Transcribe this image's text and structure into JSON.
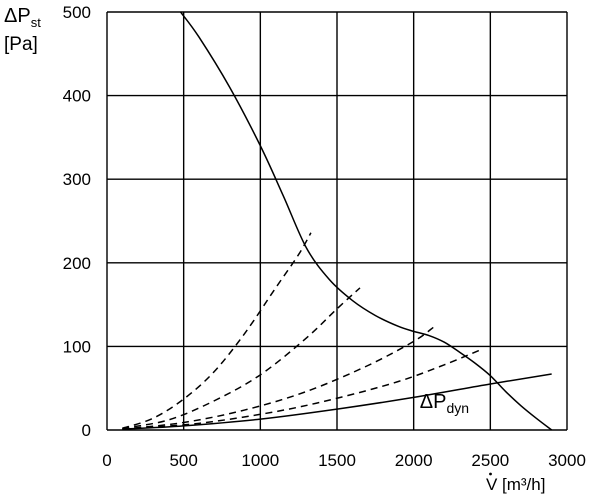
{
  "chart_data": {
    "type": "line",
    "title": "",
    "ylabel": {
      "main": "ΔP",
      "sub": "st",
      "unit": "[Pa]"
    },
    "xlabel": {
      "main": "V",
      "unit": "[m³/h]"
    },
    "xlim": [
      0,
      3000
    ],
    "ylim": [
      0,
      500
    ],
    "x_ticks": [
      0,
      500,
      1000,
      1500,
      2000,
      2500,
      3000
    ],
    "y_ticks": [
      0,
      100,
      200,
      300,
      400,
      500
    ],
    "grid": true,
    "series": [
      {
        "style": "solid",
        "x": [
          480,
          600,
          800,
          1000,
          1150,
          1300,
          1450,
          1600,
          1750,
          1900,
          2000,
          2100,
          2200,
          2300,
          2400,
          2500,
          2600,
          2700,
          2800,
          2900
        ],
        "y": [
          500,
          470,
          410,
          340,
          280,
          218,
          180,
          155,
          137,
          124,
          118,
          113,
          105,
          93,
          80,
          65,
          46,
          29,
          14,
          0
        ]
      },
      {
        "style": "dashed",
        "x": [
          100,
          300,
          500,
          700,
          900,
          1100,
          1250,
          1330
        ],
        "y": [
          2,
          14,
          37,
          70,
          116,
          170,
          210,
          236
        ]
      },
      {
        "style": "dashed",
        "x": [
          100,
          400,
          700,
          1000,
          1300,
          1500,
          1650
        ],
        "y": [
          2,
          12,
          35,
          66,
          110,
          145,
          170
        ]
      },
      {
        "style": "dashed",
        "x": [
          100,
          500,
          900,
          1300,
          1700,
          2000,
          2130
        ],
        "y": [
          1,
          9,
          24,
          46,
          77,
          106,
          123
        ]
      },
      {
        "style": "dashed",
        "x": [
          100,
          600,
          1100,
          1500,
          1900,
          2200,
          2450
        ],
        "y": [
          1,
          8,
          22,
          38,
          58,
          78,
          97
        ]
      },
      {
        "name": "ΔP dyn",
        "style": "solid",
        "x": [
          100,
          500,
          1000,
          1500,
          2000,
          2500,
          2900
        ],
        "y": [
          1,
          5,
          13,
          25,
          39,
          55,
          67
        ]
      }
    ],
    "annotations": [
      {
        "text_main": "ΔP",
        "text_sub": "dyn",
        "x": 2040,
        "y": 32
      }
    ]
  }
}
